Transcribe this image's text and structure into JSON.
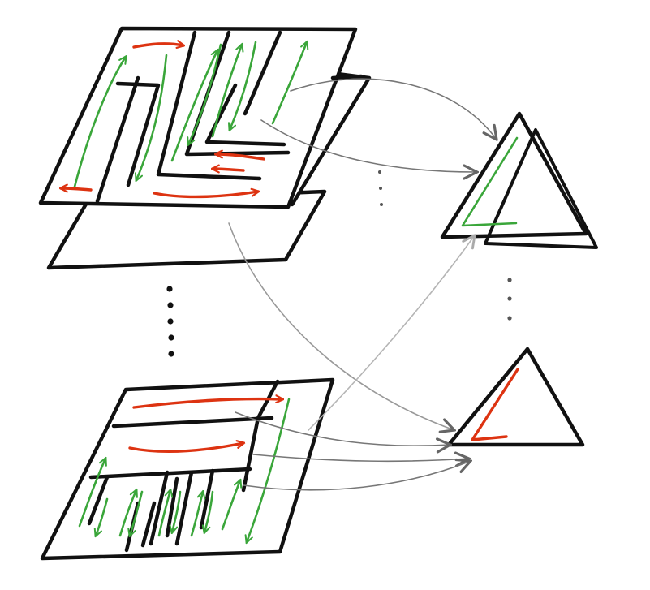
{
  "colors": {
    "ink": "#111111",
    "green": "#3aa63a",
    "red": "#dd3311",
    "link": "#777777",
    "link_faint": "#b5b5b5",
    "background": "#ffffff"
  },
  "figure": {
    "stacks": [
      "maze-stack-top",
      "maze-stack-bottom"
    ],
    "triangles": [
      "triangle-green",
      "triangle-red"
    ]
  }
}
